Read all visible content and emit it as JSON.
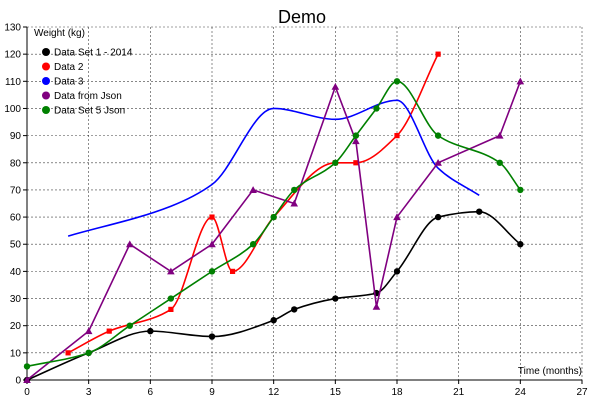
{
  "chart_data": {
    "type": "line",
    "title": "Demo",
    "xlabel": "Time (months)",
    "ylabel": "Weight (kg)",
    "xlim": [
      0,
      27
    ],
    "ylim": [
      0,
      130
    ],
    "xticks": [
      0,
      3,
      6,
      9,
      12,
      15,
      18,
      21,
      24,
      27
    ],
    "yticks": [
      0,
      10,
      20,
      30,
      40,
      50,
      60,
      70,
      80,
      90,
      100,
      110,
      120,
      130
    ],
    "grid": true,
    "legend_position": "top-left",
    "series": [
      {
        "name": "Data Set 1 - 2014",
        "color": "#000000",
        "marker": "circle",
        "interpolation": "smooth",
        "x": [
          0,
          3,
          6,
          9,
          12,
          13,
          15,
          17,
          18,
          20,
          22,
          24
        ],
        "y": [
          0,
          10,
          18,
          16,
          22,
          26,
          30,
          32,
          40,
          60,
          62,
          50
        ]
      },
      {
        "name": "Data 2",
        "color": "#ff0000",
        "marker": "square",
        "interpolation": "smooth",
        "x": [
          2,
          4,
          7,
          9,
          10,
          12,
          15,
          16,
          18,
          20
        ],
        "y": [
          10,
          18,
          26,
          60,
          40,
          60,
          80,
          80,
          90,
          120
        ]
      },
      {
        "name": "Data 3",
        "color": "#0000ff",
        "marker": "none",
        "interpolation": "smooth",
        "x": [
          2,
          7,
          9,
          12,
          15,
          18,
          20,
          22
        ],
        "y": [
          53,
          64,
          72,
          100,
          96,
          103,
          78,
          68
        ]
      },
      {
        "name": "Data from Json",
        "color": "#800080",
        "marker": "triangle",
        "interpolation": "linear",
        "x": [
          0,
          3,
          5,
          7,
          9,
          11,
          13,
          15,
          16,
          17,
          18,
          20,
          23,
          24
        ],
        "y": [
          0,
          18,
          50,
          40,
          50,
          70,
          65,
          108,
          88,
          27,
          60,
          80,
          90,
          110
        ]
      },
      {
        "name": "Data Set 5 Json",
        "color": "#008000",
        "marker": "circle",
        "interpolation": "smooth",
        "x": [
          0,
          3,
          5,
          7,
          9,
          11,
          12,
          13,
          15,
          16,
          17,
          18,
          20,
          23,
          24
        ],
        "y": [
          5,
          10,
          20,
          30,
          40,
          50,
          60,
          70,
          80,
          90,
          100,
          110,
          90,
          80,
          70
        ]
      }
    ]
  }
}
